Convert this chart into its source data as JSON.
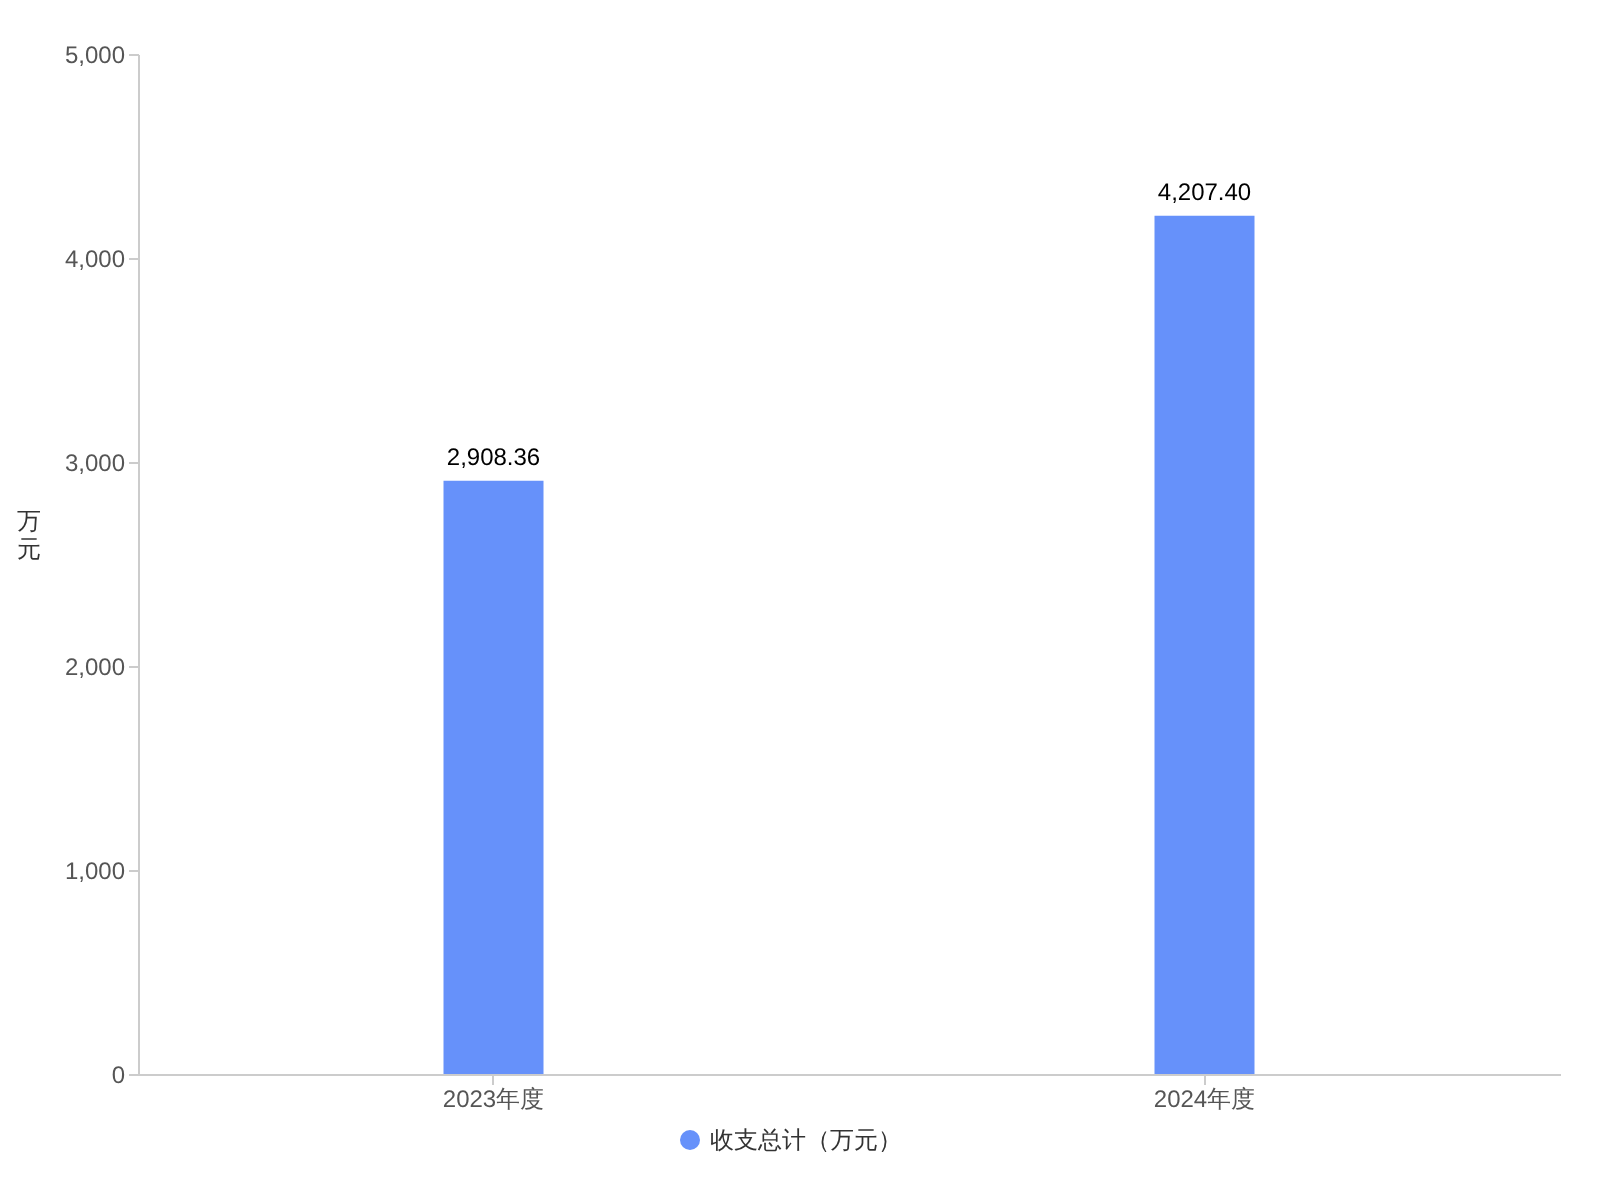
{
  "chart_data": {
    "type": "bar",
    "ylabel": "万元",
    "categories": [
      "2023年度",
      "2024年度"
    ],
    "series": [
      {
        "name": "收支总计（万元）",
        "color": "#6691fa",
        "values": [
          2908.36,
          4207.4
        ],
        "value_labels": [
          "2,908.36",
          "4,207.40"
        ]
      }
    ],
    "ylim": [
      0,
      5000
    ],
    "yticks": [
      0,
      {
        "value": 1000,
        "label": "1,000"
      },
      {
        "value": 2000,
        "label": "2,000"
      },
      {
        "value": 3000,
        "label": "3,000"
      },
      {
        "value": 4000,
        "label": "4,000"
      },
      {
        "value": 5000,
        "label": "5,000"
      }
    ],
    "grid": false,
    "legend": "bottom"
  }
}
